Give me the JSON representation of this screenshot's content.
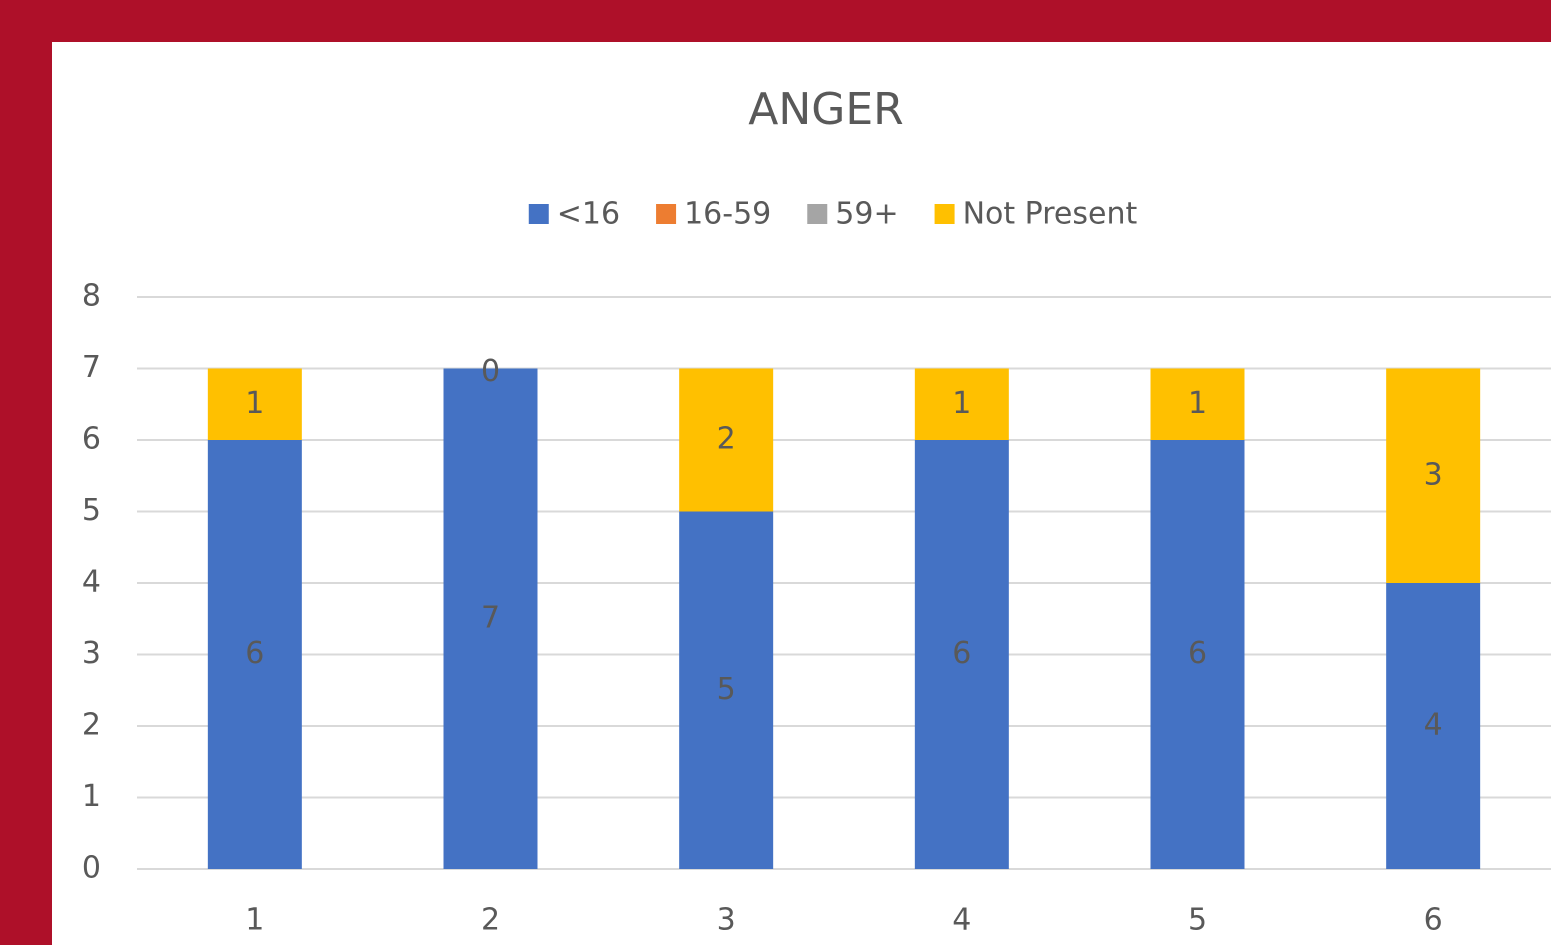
{
  "chart_data": {
    "type": "stacked_bar",
    "title": "ANGER",
    "categories": [
      "1",
      "2",
      "3",
      "4",
      "5",
      "6"
    ],
    "series": [
      {
        "name": "<16",
        "color": "#4472c4",
        "values": [
          6,
          7,
          5,
          6,
          6,
          4
        ],
        "show_labels": true
      },
      {
        "name": "16-59",
        "color": "#ed7d31",
        "values": [
          0,
          0,
          0,
          0,
          0,
          0
        ],
        "show_labels": false
      },
      {
        "name": "59+",
        "color": "#a5a5a5",
        "values": [
          0,
          0,
          0,
          0,
          0,
          0
        ],
        "show_labels": false
      },
      {
        "name": "Not Present",
        "color": "#ffc000",
        "values": [
          1,
          0,
          2,
          1,
          1,
          3
        ],
        "show_labels": true
      }
    ],
    "ylim": [
      0,
      8
    ],
    "yticks": [
      0,
      1,
      2,
      3,
      4,
      5,
      6,
      7,
      8
    ],
    "grid": true,
    "legend": "top"
  }
}
